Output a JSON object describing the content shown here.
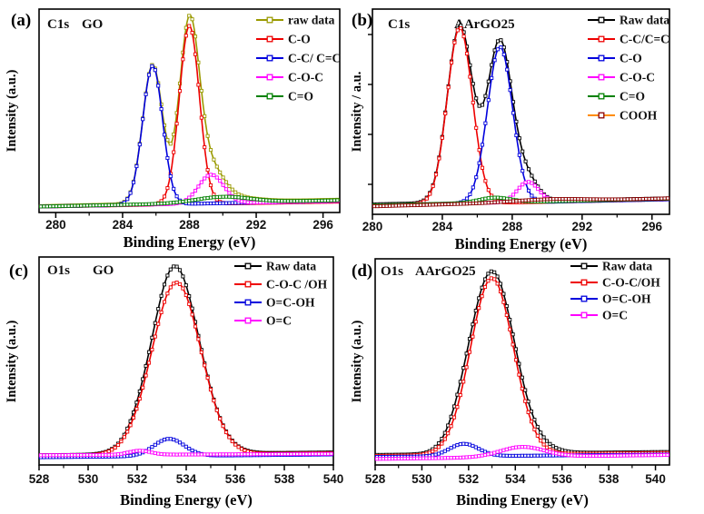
{
  "figure": {
    "background": "#ffffff",
    "xlabel": "Binding Energy (eV)",
    "accent_colors": {
      "raw_olive": "#9a9a00",
      "raw_black": "#000000",
      "red": "#ee0000",
      "blue": "#0000dd",
      "magenta": "#ff00ff",
      "green": "#008000",
      "orange": "#ff8c00",
      "maroon": "#8b0000"
    }
  },
  "chart_data": [
    {
      "type": "line",
      "panel_letter": "(a)",
      "title_left": "C1s",
      "title_right": "GO",
      "xlabel": "Binding Energy (eV)",
      "ylabel": "Intensity (a.u.)",
      "xlim": [
        279,
        297
      ],
      "xticks": [
        280,
        284,
        288,
        292,
        296
      ],
      "minor_xticks": [
        282,
        286,
        290,
        294
      ],
      "yticks_shown": false,
      "grid": false,
      "legend_position": "top-right",
      "series": [
        {
          "name": "raw data",
          "color": "#9a9a00",
          "base": [
            0.032,
            0.065
          ],
          "peaks": [
            {
              "c": 285.8,
              "h": 0.7,
              "s": 0.6
            },
            {
              "c": 288.0,
              "h": 0.9,
              "s": 0.6
            },
            {
              "c": 289.3,
              "h": 0.145,
              "s": 0.75
            },
            {
              "c": 290.0,
              "h": 0.03,
              "s": 1.6
            }
          ]
        },
        {
          "name": "C-O",
          "color": "#ee0000",
          "base": [
            0.03,
            0.055
          ],
          "peaks": [
            {
              "c": 288.0,
              "h": 0.9,
              "s": 0.6
            }
          ]
        },
        {
          "name": "C-C/ C=C",
          "color": "#0000dd",
          "base": [
            0.03,
            0.058
          ],
          "peaks": [
            {
              "c": 285.8,
              "h": 0.7,
              "s": 0.6
            }
          ]
        },
        {
          "name": "C-O-C",
          "color": "#ff00ff",
          "base": [
            0.03,
            0.058
          ],
          "peaks": [
            {
              "c": 289.3,
              "h": 0.145,
              "s": 0.75
            }
          ]
        },
        {
          "name": "C=O",
          "color": "#008000",
          "base": [
            0.03,
            0.062
          ],
          "peaks": [
            {
              "c": 290.0,
              "h": 0.03,
              "s": 1.6
            }
          ]
        }
      ]
    },
    {
      "type": "line",
      "panel_letter": "(b)",
      "title_left": "C1s",
      "title_right": "AArGO25",
      "xlabel": "Binding Energy (eV)",
      "ylabel": "Intensity / a.u.",
      "xlim": [
        280,
        297
      ],
      "xticks": [
        280,
        284,
        288,
        292,
        296
      ],
      "minor_xticks": [
        282,
        286,
        290,
        294
      ],
      "yticks_shown": true,
      "grid": false,
      "legend_position": "top-right",
      "series": [
        {
          "name": "Raw data",
          "color": "#000000",
          "base": [
            0.05,
            0.08
          ],
          "peaks": [
            {
              "c": 285.0,
              "h": 0.88,
              "s": 0.72
            },
            {
              "c": 287.3,
              "h": 0.78,
              "s": 0.72
            },
            {
              "c": 288.9,
              "h": 0.1,
              "s": 0.6
            },
            {
              "c": 287.0,
              "h": 0.025,
              "s": 0.9
            }
          ]
        },
        {
          "name": "C-C/C=C",
          "color": "#ee0000",
          "base": [
            0.045,
            0.075
          ],
          "peaks": [
            {
              "c": 285.0,
              "h": 0.88,
              "s": 0.72
            }
          ]
        },
        {
          "name": "C-O",
          "color": "#0000dd",
          "base": [
            0.045,
            0.075
          ],
          "peaks": [
            {
              "c": 287.3,
              "h": 0.78,
              "s": 0.72
            }
          ]
        },
        {
          "name": "C-O-C",
          "color": "#ff00ff",
          "base": [
            0.045,
            0.078
          ],
          "peaks": [
            {
              "c": 288.9,
              "h": 0.1,
              "s": 0.6
            }
          ]
        },
        {
          "name": "C=O",
          "color": "#008000",
          "base": [
            0.045,
            0.078
          ],
          "peaks": [
            {
              "c": 287.0,
              "h": 0.025,
              "s": 0.9
            }
          ]
        },
        {
          "name": "COOH",
          "color": "#ff8c00",
          "marker_color": "#8b0000",
          "base": [
            0.04,
            0.08
          ],
          "peaks": [
            {
              "c": 290.2,
              "h": 0.012,
              "s": 2.0
            }
          ]
        }
      ]
    },
    {
      "type": "line",
      "panel_letter": "(c)",
      "title_left": "O1s",
      "title_right": "GO",
      "xlabel": "Binding Energy (eV)",
      "ylabel": "Intensity (a.u.)",
      "xlim": [
        528,
        540
      ],
      "xticks": [
        528,
        530,
        532,
        534,
        536,
        538,
        540
      ],
      "minor_xticks": [
        529,
        531,
        533,
        535,
        537,
        539
      ],
      "yticks_shown": false,
      "grid": false,
      "legend_position": "top-right",
      "series": [
        {
          "name": "Raw data",
          "color": "#000000",
          "base": [
            0.048,
            0.062
          ],
          "peaks": [
            {
              "c": 533.6,
              "h": 0.85,
              "s": 1.0
            },
            {
              "c": 533.3,
              "h": 0.085,
              "s": 0.62
            },
            {
              "c": 532.1,
              "h": 0.02,
              "s": 0.45
            }
          ]
        },
        {
          "name": "C-O-C /OH",
          "color": "#ee0000",
          "base": [
            0.045,
            0.058
          ],
          "peaks": [
            {
              "c": 533.6,
              "h": 0.85,
              "s": 1.0
            }
          ]
        },
        {
          "name": "O=C-OH",
          "color": "#0000dd",
          "base": [
            0.038,
            0.052
          ],
          "peaks": [
            {
              "c": 533.3,
              "h": 0.085,
              "s": 0.62
            }
          ]
        },
        {
          "name": "O=C",
          "color": "#ff00ff",
          "base": [
            0.048,
            0.055
          ],
          "peaks": [
            {
              "c": 532.1,
              "h": 0.02,
              "s": 0.45
            }
          ]
        }
      ]
    },
    {
      "type": "line",
      "panel_letter": "(d)",
      "title_left": "O1s",
      "title_right": "AArGO25",
      "xlabel": "Binding Energy (eV)",
      "ylabel": "Intensity (a.u.)",
      "xlim": [
        528,
        540.6
      ],
      "xticks": [
        528,
        530,
        532,
        534,
        536,
        538,
        540
      ],
      "minor_xticks": [
        529,
        531,
        533,
        535,
        537,
        539
      ],
      "yticks_shown": false,
      "grid": false,
      "legend_position": "top-right",
      "series": [
        {
          "name": "Raw data",
          "color": "#000000",
          "base": [
            0.05,
            0.065
          ],
          "peaks": [
            {
              "c": 533.0,
              "h": 0.88,
              "s": 0.92
            },
            {
              "c": 531.8,
              "h": 0.062,
              "s": 0.62
            },
            {
              "c": 534.3,
              "h": 0.05,
              "s": 0.95
            }
          ]
        },
        {
          "name": "C-O-C/OH",
          "color": "#ee0000",
          "base": [
            0.045,
            0.06
          ],
          "peaks": [
            {
              "c": 533.0,
              "h": 0.88,
              "s": 0.92
            }
          ]
        },
        {
          "name": "O=C-OH",
          "color": "#0000dd",
          "base": [
            0.04,
            0.052
          ],
          "peaks": [
            {
              "c": 531.8,
              "h": 0.062,
              "s": 0.62
            }
          ]
        },
        {
          "name": "O=C",
          "color": "#ff00ff",
          "base": [
            0.03,
            0.05
          ],
          "peaks": [
            {
              "c": 534.3,
              "h": 0.05,
              "s": 0.95
            }
          ]
        }
      ]
    }
  ]
}
